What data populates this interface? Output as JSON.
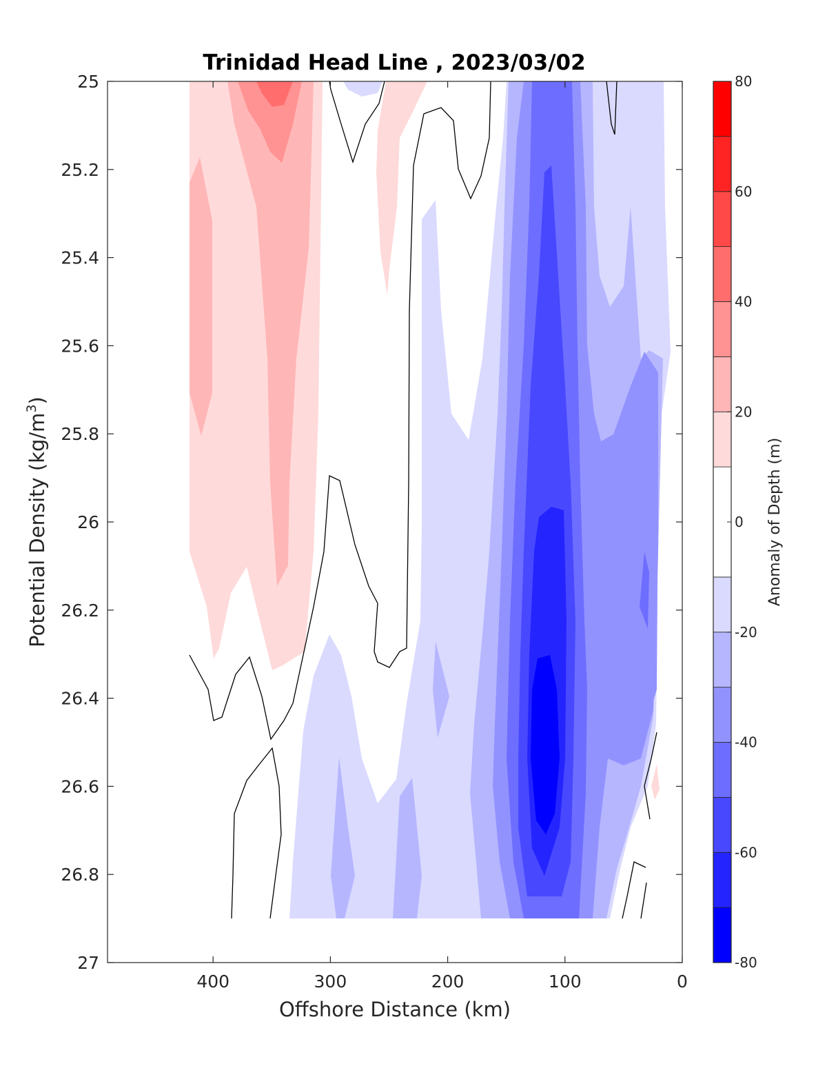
{
  "chart_data": {
    "type": "contourf",
    "title": "Trinidad Head Line , 2023/03/02",
    "xlabel": "Offshore Distance (km)",
    "ylabel_main": "Potential Density (kg/m",
    "ylabel_sup": "3",
    "ylabel_close": ")",
    "xlim": [
      490,
      0
    ],
    "ylim": [
      25,
      27
    ],
    "y_reversed": true,
    "x_reversed": true,
    "xticks": [
      400,
      300,
      200,
      100,
      0
    ],
    "yticks": [
      25,
      25.2,
      25.4,
      25.6,
      25.8,
      26,
      26.2,
      26.4,
      26.6,
      26.8,
      27
    ],
    "data_extent": {
      "x": [
        420,
        18
      ],
      "y": [
        25,
        26.9
      ]
    },
    "colorbar": {
      "label": "Anomaly of Depth (m)",
      "range": [
        -80,
        80
      ],
      "levels": [
        -80,
        -70,
        -60,
        -50,
        -40,
        -30,
        -20,
        -10,
        10,
        20,
        30,
        40,
        50,
        60,
        70,
        80
      ],
      "ticks": [
        80,
        60,
        40,
        20,
        0,
        -20,
        -40,
        -60,
        -80
      ],
      "colors": {
        "-80": "#0000ff",
        "-70": "#2424ff",
        "-60": "#4848ff",
        "-50": "#6d6dff",
        "-40": "#9292ff",
        "-30": "#b6b6ff",
        "-20": "#dadaff",
        "0": "#ffffff",
        "10": "#ffdada",
        "20": "#ffb6b6",
        "30": "#ff9292",
        "40": "#ff6d6d",
        "50": "#ff4848",
        "60": "#ff2424",
        "70": "#ff0000"
      }
    },
    "features": [
      {
        "name": "positive anomaly band",
        "x_range": [
          420,
          310
        ],
        "y_range": [
          25,
          26.3
        ],
        "max_value": 40
      },
      {
        "name": "positive anomaly near surface",
        "x_range": [
          260,
          215
        ],
        "y_range": [
          25,
          25.45
        ],
        "max_value": 20
      },
      {
        "name": "negative anomaly core",
        "x_range": [
          145,
          90
        ],
        "y_range": [
          25,
          26.9
        ],
        "min_value": -80,
        "core_x": 115,
        "core_y": 26.5
      },
      {
        "name": "secondary negative anomaly",
        "x_range": [
          70,
          18
        ],
        "y_range": [
          25.6,
          26.9
        ],
        "min_value": -50
      }
    ]
  }
}
